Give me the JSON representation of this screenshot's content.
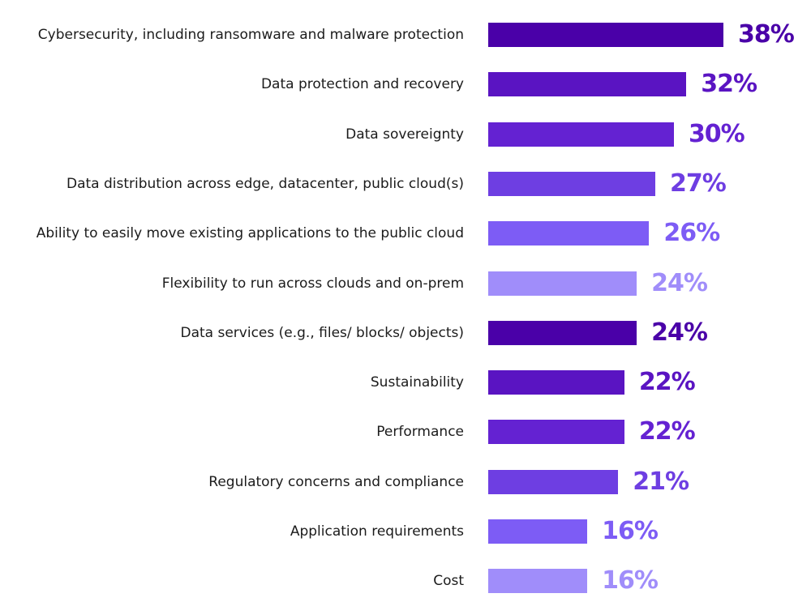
{
  "chart_data": {
    "type": "bar",
    "orientation": "horizontal",
    "title": "",
    "xlabel": "",
    "ylabel": "",
    "xlim": [
      0,
      38
    ],
    "grid": false,
    "legend": "none",
    "categories": [
      "Cybersecurity, including ransomware and malware protection",
      "Data protection and recovery",
      "Data sovereignty",
      "Data distribution across edge, datacenter, public cloud(s)",
      "Ability to easily move existing applications to the public cloud",
      "Flexibility to run across clouds and on-prem",
      "Data services (e.g., files/ blocks/ objects)",
      "Sustainability",
      "Performance",
      "Regulatory concerns and compliance",
      "Application requirements",
      "Cost"
    ],
    "values": [
      38,
      32,
      30,
      27,
      26,
      24,
      24,
      22,
      22,
      21,
      16,
      16
    ],
    "value_labels": [
      "38%",
      "32%",
      "30%",
      "27%",
      "26%",
      "24%",
      "24%",
      "22%",
      "22%",
      "21%",
      "16%",
      "16%"
    ],
    "colors": [
      "#4a00a8",
      "#5a14c2",
      "#6422d2",
      "#6e3ee2",
      "#7d5cf5",
      "#a08dfa",
      "#4a00a8",
      "#5a14c2",
      "#6422d2",
      "#6e3ee2",
      "#7d5cf5",
      "#a08dfa"
    ]
  }
}
